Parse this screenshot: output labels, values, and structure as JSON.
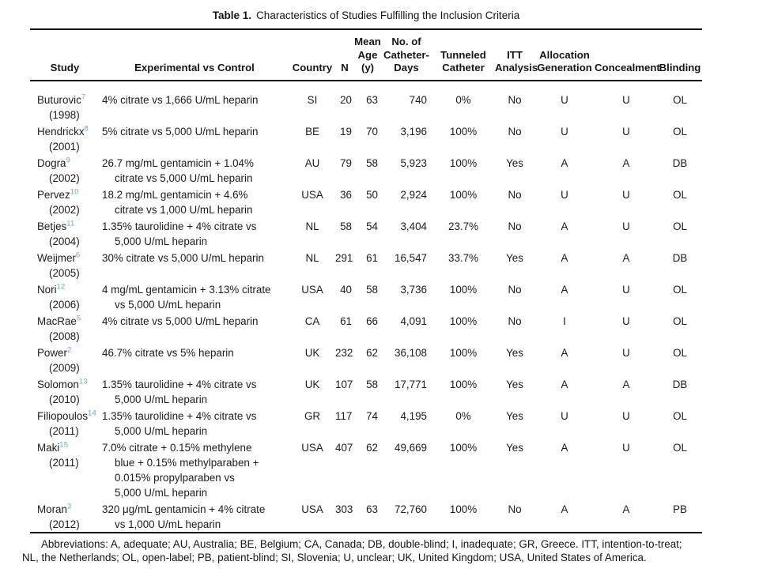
{
  "title": {
    "label": "Table 1.",
    "caption": "Characteristics of Studies Fulfilling the Inclusion Criteria"
  },
  "columns": [
    {
      "key": "study",
      "lines": [
        "Study"
      ]
    },
    {
      "key": "exp",
      "lines": [
        "Experimental vs Control"
      ]
    },
    {
      "key": "country",
      "lines": [
        "Country"
      ]
    },
    {
      "key": "n",
      "lines": [
        "N"
      ]
    },
    {
      "key": "age",
      "lines": [
        "Mean",
        "Age",
        "(y)"
      ]
    },
    {
      "key": "days",
      "lines": [
        "No. of",
        "Catheter-",
        "Days"
      ]
    },
    {
      "key": "tunneled",
      "lines": [
        "Tunneled",
        "Catheter"
      ]
    },
    {
      "key": "itt",
      "lines": [
        "ITT",
        "Analysis"
      ]
    },
    {
      "key": "alloc",
      "lines": [
        "Allocation",
        "Generation"
      ]
    },
    {
      "key": "conceal",
      "lines": [
        "Concealment"
      ]
    },
    {
      "key": "blinding",
      "lines": [
        "Blinding"
      ]
    }
  ],
  "rows": [
    {
      "study": "Buturovic",
      "ref": "7",
      "year": "(1998)",
      "exp": [
        "4% citrate vs 1,666 U/mL heparin"
      ],
      "country": "SI",
      "n": "20",
      "age": "63",
      "days": "740",
      "tunneled": "0%",
      "itt": "No",
      "alloc": "U",
      "conceal": "U",
      "blinding": "OL"
    },
    {
      "study": "Hendrickx",
      "ref": "8",
      "year": "(2001)",
      "exp": [
        "5% citrate vs 5,000 U/mL heparin"
      ],
      "country": "BE",
      "n": "19",
      "age": "70",
      "days": "3,196",
      "tunneled": "100%",
      "itt": "No",
      "alloc": "U",
      "conceal": "U",
      "blinding": "OL"
    },
    {
      "study": "Dogra",
      "ref": "9",
      "year": "(2002)",
      "exp": [
        "26.7 mg/mL gentamicin + 1.04%",
        "citrate vs 5,000 U/mL heparin"
      ],
      "country": "AU",
      "n": "79",
      "age": "58",
      "days": "5,923",
      "tunneled": "100%",
      "itt": "Yes",
      "alloc": "A",
      "conceal": "A",
      "blinding": "DB"
    },
    {
      "study": "Pervez",
      "ref": "10",
      "year": "(2002)",
      "exp": [
        "18.2 mg/mL gentamicin + 4.6%",
        "citrate vs 1,000 U/mL heparin"
      ],
      "country": "USA",
      "n": "36",
      "age": "50",
      "days": "2,924",
      "tunneled": "100%",
      "itt": "No",
      "alloc": "U",
      "conceal": "U",
      "blinding": "OL"
    },
    {
      "study": "Betjes",
      "ref": "11",
      "year": "(2004)",
      "exp": [
        "1.35% taurolidine + 4% citrate vs",
        "5,000 U/mL heparin"
      ],
      "country": "NL",
      "n": "58",
      "age": "54",
      "days": "3,404",
      "tunneled": "23.7%",
      "itt": "No",
      "alloc": "A",
      "conceal": "U",
      "blinding": "OL"
    },
    {
      "study": "Weijmer",
      "ref": "6",
      "year": "(2005)",
      "exp": [
        "30% citrate vs 5,000 U/mL heparin"
      ],
      "country": "NL",
      "n": "291",
      "age": "61",
      "days": "16,547",
      "tunneled": "33.7%",
      "itt": "Yes",
      "alloc": "A",
      "conceal": "A",
      "blinding": "DB"
    },
    {
      "study": "Nori",
      "ref": "12",
      "year": "(2006)",
      "exp": [
        "4 mg/mL gentamicin + 3.13% citrate",
        "vs 5,000 U/mL heparin"
      ],
      "country": "USA",
      "n": "40",
      "age": "58",
      "days": "3,736",
      "tunneled": "100%",
      "itt": "No",
      "alloc": "A",
      "conceal": "U",
      "blinding": "OL"
    },
    {
      "study": "MacRae",
      "ref": "5",
      "year": "(2008)",
      "exp": [
        "4% citrate vs 5,000 U/mL heparin"
      ],
      "country": "CA",
      "n": "61",
      "age": "66",
      "days": "4,091",
      "tunneled": "100%",
      "itt": "No",
      "alloc": "I",
      "conceal": "U",
      "blinding": "OL"
    },
    {
      "study": "Power",
      "ref": "2",
      "year": "(2009)",
      "exp": [
        "46.7% citrate vs 5% heparin"
      ],
      "country": "UK",
      "n": "232",
      "age": "62",
      "days": "36,108",
      "tunneled": "100%",
      "itt": "Yes",
      "alloc": "A",
      "conceal": "U",
      "blinding": "OL"
    },
    {
      "study": "Solomon",
      "ref": "13",
      "year": "(2010)",
      "exp": [
        "1.35% taurolidine + 4% citrate vs",
        "5,000 U/mL heparin"
      ],
      "country": "UK",
      "n": "107",
      "age": "58",
      "days": "17,771",
      "tunneled": "100%",
      "itt": "Yes",
      "alloc": "A",
      "conceal": "A",
      "blinding": "DB"
    },
    {
      "study": "Filiopoulos",
      "ref": "14",
      "year": "(2011)",
      "exp": [
        "1.35% taurolidine + 4% citrate vs",
        "5,000 U/mL heparin"
      ],
      "country": "GR",
      "n": "117",
      "age": "74",
      "days": "4,195",
      "tunneled": "0%",
      "itt": "Yes",
      "alloc": "U",
      "conceal": "U",
      "blinding": "OL"
    },
    {
      "study": "Maki",
      "ref": "15",
      "year": "(2011)",
      "exp": [
        "7.0% citrate + 0.15% methylene",
        "blue + 0.15% methylparaben +",
        "0.015% propylparaben vs",
        "5,000 U/mL heparin"
      ],
      "country": "USA",
      "n": "407",
      "age": "62",
      "days": "49,669",
      "tunneled": "100%",
      "itt": "Yes",
      "alloc": "A",
      "conceal": "U",
      "blinding": "OL"
    },
    {
      "study": "Moran",
      "ref": "3",
      "year": "(2012)",
      "exp": [
        "320 μg/mL gentamicin + 4% citrate",
        "vs 1,000 U/mL heparin"
      ],
      "country": "USA",
      "n": "303",
      "age": "63",
      "days": "72,760",
      "tunneled": "100%",
      "itt": "No",
      "alloc": "A",
      "conceal": "A",
      "blinding": "PB"
    }
  ],
  "footnote": {
    "lines": [
      "Abbreviations: A, adequate; AU, Australia; BE, Belgium; CA, Canada; DB, double-blind; I, inadequate; GR, Greece. ITT, intention-to-treat;",
      "NL, the Netherlands; OL, open-label; PB, patient-blind; SI, Slovenia; U, unclear; UK, United Kingdom; USA, United States of America."
    ]
  },
  "colors": {
    "reference_superscript": "#69a8d8",
    "text": "#1d1d1d",
    "rule": "#121212"
  }
}
